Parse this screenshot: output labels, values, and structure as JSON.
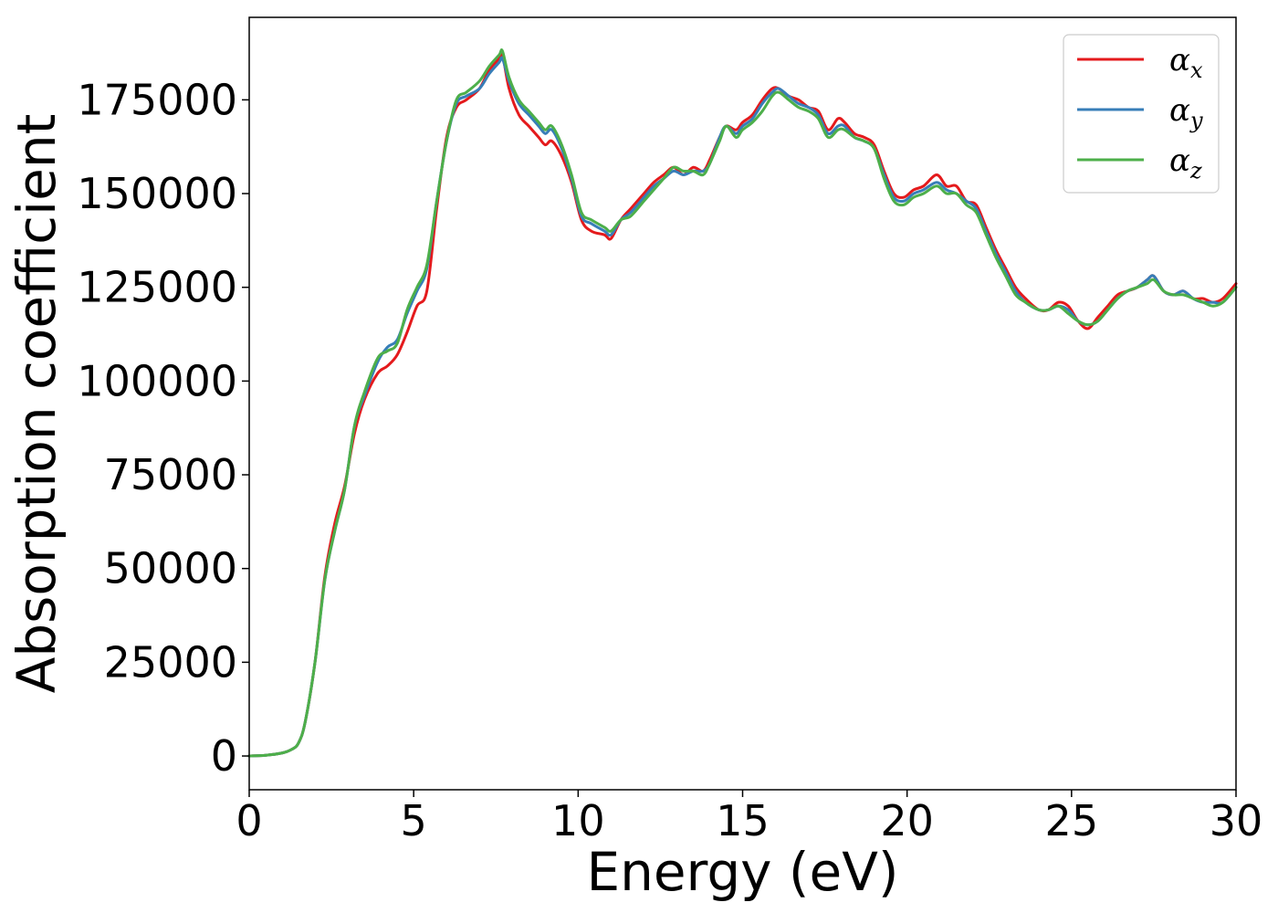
{
  "chart_data": {
    "type": "line",
    "xlabel": "Energy (eV)",
    "ylabel": "Absorption coefficient",
    "xlim": [
      0,
      30
    ],
    "ylim": [
      -9000,
      197000
    ],
    "xticks": [
      0,
      5,
      10,
      15,
      20,
      25,
      30
    ],
    "yticks": [
      0,
      25000,
      50000,
      75000,
      100000,
      125000,
      150000,
      175000
    ],
    "grid": false,
    "legend_position": "top-right",
    "x": [
      0,
      0.5,
      1.0,
      1.3,
      1.5,
      1.7,
      2.0,
      2.3,
      2.6,
      2.9,
      3.2,
      3.5,
      3.9,
      4.2,
      4.5,
      4.8,
      5.1,
      5.4,
      5.7,
      6.0,
      6.3,
      6.6,
      7.0,
      7.3,
      7.6,
      7.7,
      7.9,
      8.2,
      8.5,
      8.8,
      9.0,
      9.2,
      9.5,
      9.8,
      10.1,
      10.4,
      10.8,
      11.0,
      11.3,
      11.6,
      12.0,
      12.3,
      12.6,
      12.9,
      13.2,
      13.5,
      13.8,
      14.0,
      14.3,
      14.5,
      14.8,
      15.0,
      15.3,
      15.6,
      15.9,
      16.1,
      16.4,
      16.7,
      17.0,
      17.3,
      17.6,
      17.9,
      18.1,
      18.4,
      18.7,
      19.0,
      19.3,
      19.6,
      19.9,
      20.2,
      20.5,
      20.9,
      21.2,
      21.5,
      21.8,
      22.1,
      22.4,
      22.7,
      23.0,
      23.3,
      23.6,
      24.0,
      24.3,
      24.6,
      24.9,
      25.2,
      25.5,
      25.8,
      26.1,
      26.4,
      26.7,
      27.0,
      27.3,
      27.5,
      27.8,
      28.1,
      28.4,
      28.7,
      29.0,
      29.3,
      29.6,
      30.0
    ],
    "series": [
      {
        "name": "α_x",
        "color": "#e41a1c",
        "values": [
          0,
          200,
          800,
          1800,
          3500,
          9000,
          25000,
          48000,
          62000,
          72000,
          86000,
          95000,
          102000,
          104000,
          107000,
          113000,
          120000,
          124000,
          146000,
          165000,
          173000,
          175000,
          178000,
          183000,
          186000,
          187000,
          178000,
          171000,
          168000,
          165000,
          163000,
          164000,
          160000,
          153000,
          143000,
          140000,
          139000,
          138000,
          143000,
          146000,
          150000,
          153000,
          155000,
          157000,
          155000,
          157000,
          156000,
          159000,
          165000,
          168000,
          167000,
          169000,
          171000,
          175000,
          178000,
          178000,
          176000,
          175000,
          173000,
          172000,
          167000,
          170000,
          169000,
          166000,
          165000,
          163000,
          156000,
          150000,
          149000,
          151000,
          152000,
          155000,
          152000,
          152000,
          148000,
          147000,
          141000,
          135000,
          130000,
          125000,
          122000,
          119000,
          119000,
          121000,
          120000,
          116000,
          114000,
          117000,
          120000,
          123000,
          124000,
          125000,
          127000,
          128000,
          124000,
          123000,
          124000,
          122000,
          122000,
          121000,
          122000,
          126000
        ]
      },
      {
        "name": "α_y",
        "color": "#377eb8",
        "values": [
          0,
          200,
          800,
          1800,
          3500,
          9000,
          25000,
          47000,
          60000,
          71000,
          88000,
          96000,
          105000,
          109000,
          111000,
          118000,
          124000,
          130000,
          148000,
          164000,
          174000,
          176000,
          178000,
          182000,
          185000,
          186000,
          180000,
          174000,
          171000,
          168000,
          166000,
          167000,
          162000,
          154000,
          144000,
          142000,
          140000,
          139000,
          143000,
          145000,
          149000,
          152000,
          154000,
          156000,
          155000,
          156000,
          156000,
          158000,
          165000,
          168000,
          166000,
          168000,
          170000,
          174000,
          177000,
          178000,
          176000,
          174000,
          173000,
          171000,
          166000,
          168000,
          168000,
          165000,
          164000,
          162000,
          155000,
          149000,
          148000,
          150000,
          151000,
          153000,
          151000,
          150000,
          148000,
          146000,
          140000,
          134000,
          129000,
          124000,
          121000,
          119000,
          119000,
          120000,
          119000,
          116000,
          115000,
          116000,
          119000,
          122000,
          124000,
          125000,
          127000,
          128000,
          124000,
          123000,
          124000,
          122000,
          121000,
          121000,
          121000,
          125000
        ]
      },
      {
        "name": "α_z",
        "color": "#4daf4a",
        "values": [
          0,
          200,
          800,
          1800,
          3500,
          9000,
          25000,
          47000,
          60000,
          71000,
          88000,
          97000,
          106000,
          108000,
          110000,
          119000,
          125000,
          131000,
          148000,
          164000,
          175000,
          177000,
          180000,
          184000,
          187000,
          188000,
          181000,
          175000,
          172000,
          169000,
          167000,
          168000,
          163000,
          155000,
          145000,
          143000,
          141000,
          140000,
          143000,
          144000,
          148000,
          151000,
          154000,
          157000,
          156000,
          156000,
          155000,
          158000,
          164000,
          168000,
          165000,
          167000,
          169000,
          172000,
          176000,
          177000,
          175000,
          173000,
          172000,
          170000,
          165000,
          167000,
          167000,
          165000,
          164000,
          162000,
          154000,
          148000,
          147000,
          149000,
          150000,
          152000,
          150000,
          150000,
          147000,
          145000,
          139000,
          133000,
          128000,
          123000,
          121000,
          119000,
          119000,
          120000,
          118000,
          116000,
          115000,
          116000,
          119000,
          122000,
          124000,
          125000,
          126000,
          127000,
          124000,
          123000,
          123000,
          122000,
          121000,
          120000,
          121000,
          125000
        ]
      }
    ]
  },
  "legend": {
    "entries": [
      {
        "base": "α",
        "sub": "x",
        "color": "#e41a1c"
      },
      {
        "base": "α",
        "sub": "y",
        "color": "#377eb8"
      },
      {
        "base": "α",
        "sub": "z",
        "color": "#4daf4a"
      }
    ]
  }
}
